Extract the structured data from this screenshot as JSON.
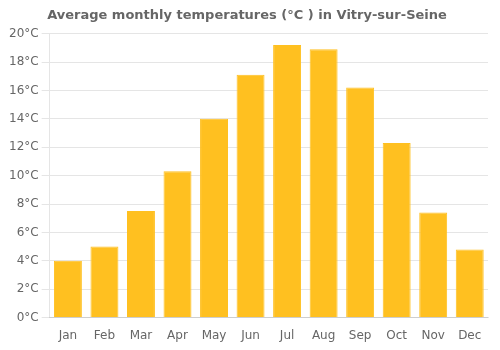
{
  "chart_data": {
    "type": "bar",
    "title": "Average monthly temperatures (°C ) in Vitry-sur-Seine",
    "categories": [
      "Jan",
      "Feb",
      "Mar",
      "Apr",
      "May",
      "Jun",
      "Jul",
      "Aug",
      "Sep",
      "Oct",
      "Nov",
      "Dec"
    ],
    "values": [
      4.0,
      5.0,
      7.5,
      10.3,
      14.0,
      17.1,
      19.2,
      18.9,
      16.2,
      12.3,
      7.4,
      4.8
    ],
    "color": "#FFC020",
    "ylim": [
      0,
      20
    ],
    "yticks": [
      {
        "value": 0,
        "label": "0°C"
      },
      {
        "value": 2,
        "label": "2°C"
      },
      {
        "value": 4,
        "label": "4°C"
      },
      {
        "value": 6,
        "label": "6°C"
      },
      {
        "value": 8,
        "label": "8°C"
      },
      {
        "value": 10,
        "label": "10°C"
      },
      {
        "value": 12,
        "label": "12°C"
      },
      {
        "value": 14,
        "label": "14°C"
      },
      {
        "value": 16,
        "label": "16°C"
      },
      {
        "value": 18,
        "label": "18°C"
      },
      {
        "value": 20,
        "label": "20°C"
      }
    ],
    "grid": true
  }
}
